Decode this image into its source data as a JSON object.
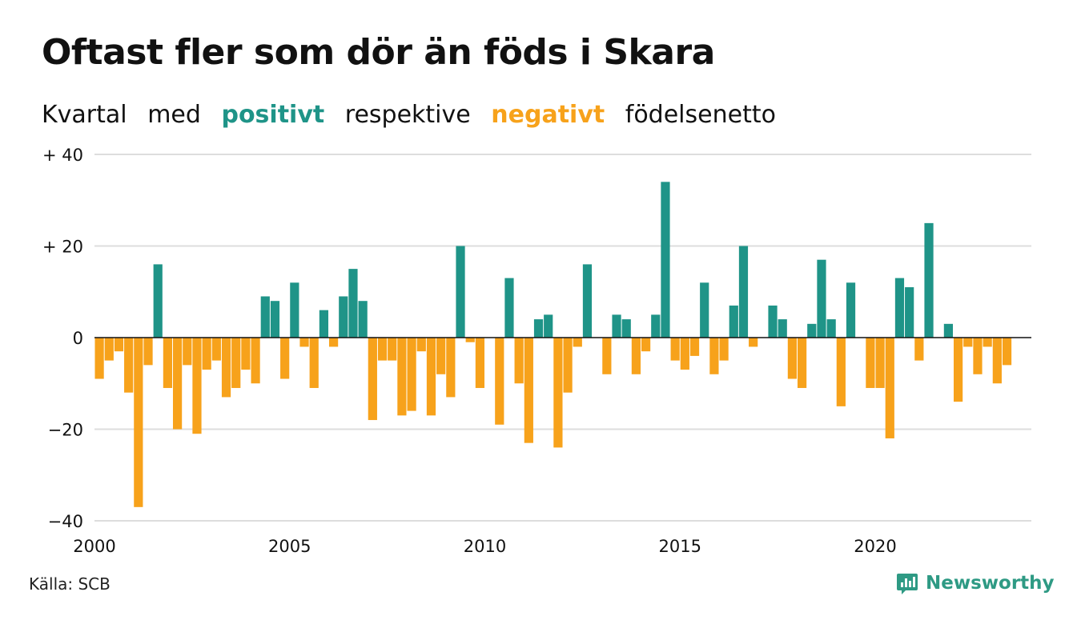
{
  "header": {
    "title": "Oftast fler som dör än föds i Skara",
    "subtitle_parts": [
      "Kvartal",
      "med",
      "positivt",
      "respektive",
      "negativt",
      "födelsenetto"
    ]
  },
  "footer": {
    "source": "Källa: SCB",
    "brand": "Newsworthy",
    "brand_icon": "newsworthy-chart-icon"
  },
  "colors": {
    "positive": "#1f9488",
    "negative": "#f7a21b",
    "grid": "#dddddd",
    "axis": "#111111",
    "brand": "#2e9a84"
  },
  "chart_data": {
    "type": "bar",
    "x_start": "2000 Q1",
    "categories": [
      "2000 Q1",
      "2000 Q2",
      "2000 Q3",
      "2000 Q4",
      "2001 Q1",
      "2001 Q2",
      "2001 Q3",
      "2001 Q4",
      "2002 Q1",
      "2002 Q2",
      "2002 Q3",
      "2002 Q4",
      "2003 Q1",
      "2003 Q2",
      "2003 Q3",
      "2003 Q4",
      "2004 Q1",
      "2004 Q2",
      "2004 Q3",
      "2004 Q4",
      "2005 Q1",
      "2005 Q2",
      "2005 Q3",
      "2005 Q4",
      "2006 Q1",
      "2006 Q2",
      "2006 Q3",
      "2006 Q4",
      "2007 Q1",
      "2007 Q2",
      "2007 Q3",
      "2007 Q4",
      "2008 Q1",
      "2008 Q2",
      "2008 Q3",
      "2008 Q4",
      "2009 Q1",
      "2009 Q2",
      "2009 Q3",
      "2009 Q4",
      "2010 Q1",
      "2010 Q2",
      "2010 Q3",
      "2010 Q4",
      "2011 Q1",
      "2011 Q2",
      "2011 Q3",
      "2011 Q4",
      "2012 Q1",
      "2012 Q2",
      "2012 Q3",
      "2012 Q4",
      "2013 Q1",
      "2013 Q2",
      "2013 Q3",
      "2013 Q4",
      "2014 Q1",
      "2014 Q2",
      "2014 Q3",
      "2014 Q4",
      "2015 Q1",
      "2015 Q2",
      "2015 Q3",
      "2015 Q4",
      "2016 Q1",
      "2016 Q2",
      "2016 Q3",
      "2016 Q4",
      "2017 Q1",
      "2017 Q2",
      "2017 Q3",
      "2017 Q4",
      "2018 Q1",
      "2018 Q2",
      "2018 Q3",
      "2018 Q4",
      "2019 Q1",
      "2019 Q2",
      "2019 Q3",
      "2019 Q4",
      "2020 Q1",
      "2020 Q2",
      "2020 Q3",
      "2020 Q4",
      "2021 Q1",
      "2021 Q2",
      "2021 Q3",
      "2021 Q4",
      "2022 Q1",
      "2022 Q2",
      "2022 Q3",
      "2022 Q4",
      "2023 Q1",
      "2023 Q2",
      "2023 Q3",
      "2023 Q4"
    ],
    "values": [
      -9,
      -5,
      -3,
      -12,
      -37,
      -6,
      16,
      -11,
      -20,
      -6,
      -21,
      -7,
      -5,
      -13,
      -11,
      -7,
      -10,
      9,
      8,
      -9,
      12,
      -2,
      -11,
      6,
      -2,
      9,
      15,
      8,
      -18,
      -5,
      -5,
      -17,
      -16,
      -3,
      -17,
      -8,
      -13,
      20,
      -1,
      -11,
      0,
      -19,
      13,
      -10,
      -23,
      4,
      5,
      -24,
      -12,
      -2,
      16,
      0,
      -8,
      5,
      4,
      -8,
      -3,
      5,
      34,
      -5,
      -7,
      -4,
      12,
      -8,
      -5,
      7,
      20,
      -2,
      0,
      7,
      4,
      -9,
      -11,
      3,
      17,
      4,
      -15,
      12,
      0,
      -11,
      -11,
      -22,
      13,
      11,
      -5,
      25,
      0,
      3,
      -14,
      -2,
      -8,
      -2,
      -10,
      -6,
      0,
      0
    ],
    "ylim": [
      -40,
      40
    ],
    "yticks": [
      40,
      20,
      0,
      -20,
      -40
    ],
    "ytick_labels": [
      "+ 40",
      "+ 20",
      "0",
      "−20",
      "−40"
    ],
    "xtick_years": [
      2000,
      2005,
      2010,
      2015,
      2020
    ],
    "xtick_labels": [
      "2000",
      "2005",
      "2010",
      "2015",
      "2020"
    ],
    "xlim": [
      2000,
      2024
    ],
    "grid": true
  }
}
